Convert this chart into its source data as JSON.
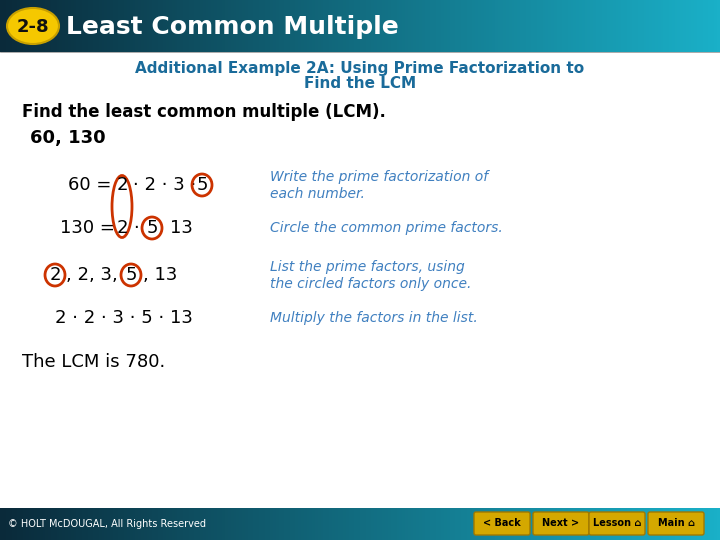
{
  "header_bg_left": "#0a2a3a",
  "header_bg_right": "#1ab0c8",
  "header_text": "Least Common Multiple",
  "header_label_bg": "#f5c800",
  "header_label_text": "2-8",
  "slide_bg": "#ffffff",
  "subtitle_color": "#1a6b9a",
  "body_text_color": "#000000",
  "blue_text_color": "#4080c0",
  "circle_color": "#cc3300",
  "footer_bg_left": "#0a2a3a",
  "footer_bg_right": "#1ab0c8",
  "footer_text": "© HOLT McDOUGAL, All Rights Reserved",
  "find_text": "Find the least common multiple (LCM).",
  "numbers_text": "60, 130",
  "conclusion": "The LCM is 780."
}
